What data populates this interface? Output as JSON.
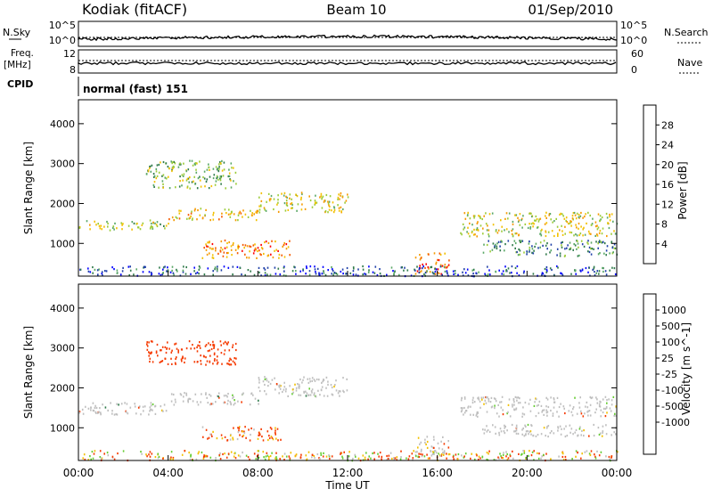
{
  "header": {
    "station": "Kodiak (fitACF)",
    "beam": "Beam 10",
    "date": "01/Sep/2010"
  },
  "noise_panel": {
    "left_label": "N.Sky",
    "left_ticks": [
      "10^5",
      "10^0"
    ],
    "right_ticks": [
      "10^5",
      "10^0"
    ],
    "right_label": "N.Search"
  },
  "freq_panel": {
    "left_label_line1": "Freq.",
    "left_label_line2": "[MHz]",
    "left_ticks": [
      "12",
      "8"
    ],
    "right_ticks": [
      "60",
      "0"
    ],
    "right_label": "Nave"
  },
  "cpid": {
    "label": "CPID",
    "mode": "normal (fast) 151"
  },
  "colors": {
    "power_scale": [
      "#0000ff",
      "#1f3fa8",
      "#2f7a4a",
      "#5aa866",
      "#9ccc3a",
      "#f2c000",
      "#f59a00",
      "#f55a00",
      "#ff0000"
    ],
    "velocity_scale": [
      "#ff0000",
      "#f53a00",
      "#f59a00",
      "#f2c000",
      "#bfbfbf",
      "#bfbfbf",
      "#66cc33",
      "#2f7a4a",
      "#1f3fa8",
      "#0000ff"
    ],
    "ground_scatter": "#bfbfbf"
  },
  "chart_data": [
    {
      "type": "heatmap",
      "panel": "power",
      "ylabel": "Slant Range [km]",
      "yticks": [
        "1000",
        "2000",
        "3000",
        "4000"
      ],
      "ylim": [
        180,
        4600
      ],
      "xlim": [
        0,
        24
      ],
      "colorbar_label": "Power [dB]",
      "colorbar_ticks": [
        "4",
        "8",
        "12",
        "16",
        "20",
        "24",
        "28"
      ],
      "colorbar_range": [
        0,
        32
      ],
      "scatter_bands": [
        {
          "t0": 0,
          "t1": 4,
          "r0": 1350,
          "r1": 1600,
          "value": 16
        },
        {
          "t0": 4,
          "t1": 8,
          "r0": 1600,
          "r1": 1900,
          "value": 20
        },
        {
          "t0": 8,
          "t1": 12,
          "r0": 1800,
          "r1": 2300,
          "value": 18
        },
        {
          "t0": 5.5,
          "t1": 9.5,
          "r0": 650,
          "r1": 1100,
          "value": 24
        },
        {
          "t0": 3,
          "t1": 7,
          "r0": 2400,
          "r1": 3100,
          "value": 14
        },
        {
          "t0": 15,
          "t1": 16.5,
          "r0": 250,
          "r1": 800,
          "value": 26
        },
        {
          "t0": 17,
          "t1": 24,
          "r0": 1200,
          "r1": 1800,
          "value": 18
        },
        {
          "t0": 18,
          "t1": 24,
          "r0": 700,
          "r1": 1100,
          "value": 10
        },
        {
          "t0": 0,
          "t1": 24,
          "r0": 200,
          "r1": 450,
          "value": 6
        }
      ]
    },
    {
      "type": "heatmap",
      "panel": "velocity",
      "ylabel": "Slant Range [km]",
      "yticks": [
        "1000",
        "2000",
        "3000",
        "4000"
      ],
      "ylim": [
        180,
        4600
      ],
      "xlim": [
        0,
        24
      ],
      "xticks": [
        "00:00",
        "04:00",
        "08:00",
        "12:00",
        "16:00",
        "20:00",
        "00:00"
      ],
      "xlabel": "Time UT",
      "colorbar_label": "Velocity [m s^-1]",
      "colorbar_ticks": [
        "1000",
        "500",
        "100",
        "25",
        "-25",
        "-100",
        "-500",
        "-1000"
      ],
      "scatter_bands": [
        {
          "t0": 0,
          "t1": 4,
          "r0": 1350,
          "r1": 1650,
          "value": 0
        },
        {
          "t0": 4,
          "t1": 8,
          "r0": 1600,
          "r1": 1900,
          "value": 0
        },
        {
          "t0": 8,
          "t1": 12,
          "r0": 1800,
          "r1": 2300,
          "value": 0
        },
        {
          "t0": 5.5,
          "t1": 9,
          "r0": 700,
          "r1": 1050,
          "value": -150
        },
        {
          "t0": 3,
          "t1": 7,
          "r0": 2600,
          "r1": 3200,
          "value": -250
        },
        {
          "t0": 15,
          "t1": 16.5,
          "r0": 300,
          "r1": 800,
          "value": 0
        },
        {
          "t0": 17,
          "t1": 24,
          "r0": 1300,
          "r1": 1800,
          "value": 0
        },
        {
          "t0": 18,
          "t1": 24,
          "r0": 800,
          "r1": 1100,
          "value": 0
        },
        {
          "t0": 0,
          "t1": 24,
          "r0": 200,
          "r1": 450,
          "value": -60
        }
      ]
    }
  ]
}
